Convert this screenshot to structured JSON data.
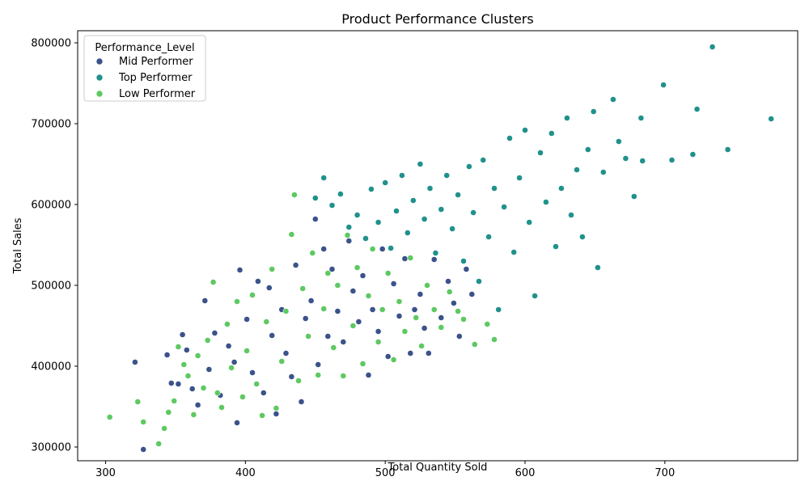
{
  "chart_data": {
    "type": "scatter",
    "title": "Product Performance Clusters",
    "xlabel": "Total Quantity Sold",
    "ylabel": "Total Sales",
    "xlim": [
      280,
      795
    ],
    "ylim": [
      283000,
      815000
    ],
    "xticks": [
      300,
      400,
      500,
      600,
      700
    ],
    "yticks": [
      300000,
      400000,
      500000,
      600000,
      700000,
      800000
    ],
    "grid": false,
    "legend": {
      "title": "Performance_Level",
      "placement": "top-left"
    },
    "series": [
      {
        "name": "Mid Performer",
        "color": "#3b528b",
        "points": [
          [
            321,
            405000
          ],
          [
            327,
            297000
          ],
          [
            344,
            414000
          ],
          [
            347,
            379000
          ],
          [
            352,
            378000
          ],
          [
            355,
            439000
          ],
          [
            358,
            420000
          ],
          [
            362,
            372000
          ],
          [
            366,
            352000
          ],
          [
            371,
            481000
          ],
          [
            374,
            396000
          ],
          [
            378,
            441000
          ],
          [
            382,
            364000
          ],
          [
            388,
            425000
          ],
          [
            392,
            405000
          ],
          [
            394,
            330000
          ],
          [
            396,
            519000
          ],
          [
            401,
            458000
          ],
          [
            405,
            392000
          ],
          [
            409,
            505000
          ],
          [
            413,
            367000
          ],
          [
            417,
            497000
          ],
          [
            419,
            438000
          ],
          [
            422,
            341000
          ],
          [
            426,
            470000
          ],
          [
            429,
            416000
          ],
          [
            433,
            387000
          ],
          [
            436,
            525000
          ],
          [
            440,
            356000
          ],
          [
            443,
            459000
          ],
          [
            447,
            481000
          ],
          [
            450,
            582000
          ],
          [
            452,
            402000
          ],
          [
            456,
            545000
          ],
          [
            459,
            437000
          ],
          [
            462,
            520000
          ],
          [
            466,
            468000
          ],
          [
            470,
            430000
          ],
          [
            474,
            555000
          ],
          [
            477,
            493000
          ],
          [
            481,
            455000
          ],
          [
            484,
            512000
          ],
          [
            488,
            389000
          ],
          [
            491,
            470000
          ],
          [
            495,
            443000
          ],
          [
            498,
            545000
          ],
          [
            502,
            412000
          ],
          [
            506,
            502000
          ],
          [
            510,
            462000
          ],
          [
            514,
            533000
          ],
          [
            518,
            416000
          ],
          [
            521,
            470000
          ],
          [
            525,
            489000
          ],
          [
            528,
            447000
          ],
          [
            531,
            416000
          ],
          [
            535,
            532000
          ],
          [
            540,
            460000
          ],
          [
            545,
            505000
          ],
          [
            549,
            478000
          ],
          [
            553,
            437000
          ],
          [
            558,
            520000
          ],
          [
            562,
            489000
          ]
        ]
      },
      {
        "name": "Top Performer",
        "color": "#21918c",
        "points": [
          [
            450,
            608000
          ],
          [
            456,
            633000
          ],
          [
            462,
            599000
          ],
          [
            468,
            613000
          ],
          [
            474,
            572000
          ],
          [
            480,
            587000
          ],
          [
            486,
            558000
          ],
          [
            490,
            619000
          ],
          [
            495,
            578000
          ],
          [
            500,
            627000
          ],
          [
            504,
            546000
          ],
          [
            508,
            592000
          ],
          [
            512,
            636000
          ],
          [
            516,
            565000
          ],
          [
            520,
            605000
          ],
          [
            525,
            650000
          ],
          [
            528,
            582000
          ],
          [
            532,
            620000
          ],
          [
            536,
            540000
          ],
          [
            540,
            594000
          ],
          [
            544,
            636000
          ],
          [
            548,
            570000
          ],
          [
            552,
            612000
          ],
          [
            556,
            530000
          ],
          [
            560,
            647000
          ],
          [
            563,
            590000
          ],
          [
            567,
            505000
          ],
          [
            570,
            655000
          ],
          [
            574,
            560000
          ],
          [
            578,
            620000
          ],
          [
            581,
            470000
          ],
          [
            585,
            597000
          ],
          [
            589,
            682000
          ],
          [
            592,
            541000
          ],
          [
            596,
            633000
          ],
          [
            600,
            692000
          ],
          [
            603,
            578000
          ],
          [
            607,
            487000
          ],
          [
            611,
            664000
          ],
          [
            615,
            603000
          ],
          [
            619,
            688000
          ],
          [
            622,
            548000
          ],
          [
            626,
            620000
          ],
          [
            630,
            707000
          ],
          [
            633,
            587000
          ],
          [
            637,
            643000
          ],
          [
            641,
            560000
          ],
          [
            645,
            668000
          ],
          [
            649,
            715000
          ],
          [
            652,
            522000
          ],
          [
            656,
            640000
          ],
          [
            663,
            730000
          ],
          [
            667,
            678000
          ],
          [
            672,
            657000
          ],
          [
            678,
            610000
          ],
          [
            683,
            707000
          ],
          [
            684,
            654000
          ],
          [
            699,
            748000
          ],
          [
            705,
            655000
          ],
          [
            720,
            662000
          ],
          [
            723,
            718000
          ],
          [
            734,
            795000
          ],
          [
            745,
            668000
          ],
          [
            776,
            706000
          ]
        ]
      },
      {
        "name": "Low Performer",
        "color": "#5ec962",
        "points": [
          [
            303,
            337000
          ],
          [
            323,
            356000
          ],
          [
            327,
            331000
          ],
          [
            338,
            304000
          ],
          [
            342,
            323000
          ],
          [
            345,
            343000
          ],
          [
            349,
            357000
          ],
          [
            352,
            424000
          ],
          [
            356,
            402000
          ],
          [
            359,
            388000
          ],
          [
            363,
            340000
          ],
          [
            366,
            413000
          ],
          [
            370,
            373000
          ],
          [
            373,
            432000
          ],
          [
            377,
            504000
          ],
          [
            380,
            367000
          ],
          [
            383,
            349000
          ],
          [
            387,
            452000
          ],
          [
            390,
            398000
          ],
          [
            394,
            480000
          ],
          [
            398,
            362000
          ],
          [
            401,
            419000
          ],
          [
            405,
            488000
          ],
          [
            408,
            378000
          ],
          [
            412,
            339000
          ],
          [
            415,
            455000
          ],
          [
            419,
            520000
          ],
          [
            422,
            348000
          ],
          [
            426,
            406000
          ],
          [
            429,
            468000
          ],
          [
            433,
            563000
          ],
          [
            435,
            612000
          ],
          [
            438,
            382000
          ],
          [
            441,
            496000
          ],
          [
            445,
            437000
          ],
          [
            448,
            540000
          ],
          [
            452,
            389000
          ],
          [
            456,
            471000
          ],
          [
            459,
            515000
          ],
          [
            463,
            423000
          ],
          [
            466,
            500000
          ],
          [
            470,
            388000
          ],
          [
            473,
            562000
          ],
          [
            477,
            450000
          ],
          [
            480,
            522000
          ],
          [
            484,
            403000
          ],
          [
            488,
            487000
          ],
          [
            491,
            545000
          ],
          [
            495,
            430000
          ],
          [
            498,
            470000
          ],
          [
            502,
            515000
          ],
          [
            506,
            408000
          ],
          [
            510,
            480000
          ],
          [
            514,
            443000
          ],
          [
            518,
            534000
          ],
          [
            522,
            460000
          ],
          [
            526,
            425000
          ],
          [
            530,
            500000
          ],
          [
            535,
            470000
          ],
          [
            540,
            448000
          ],
          [
            546,
            492000
          ],
          [
            552,
            468000
          ],
          [
            556,
            458000
          ],
          [
            564,
            427000
          ],
          [
            573,
            452000
          ],
          [
            578,
            433000
          ]
        ]
      }
    ]
  }
}
